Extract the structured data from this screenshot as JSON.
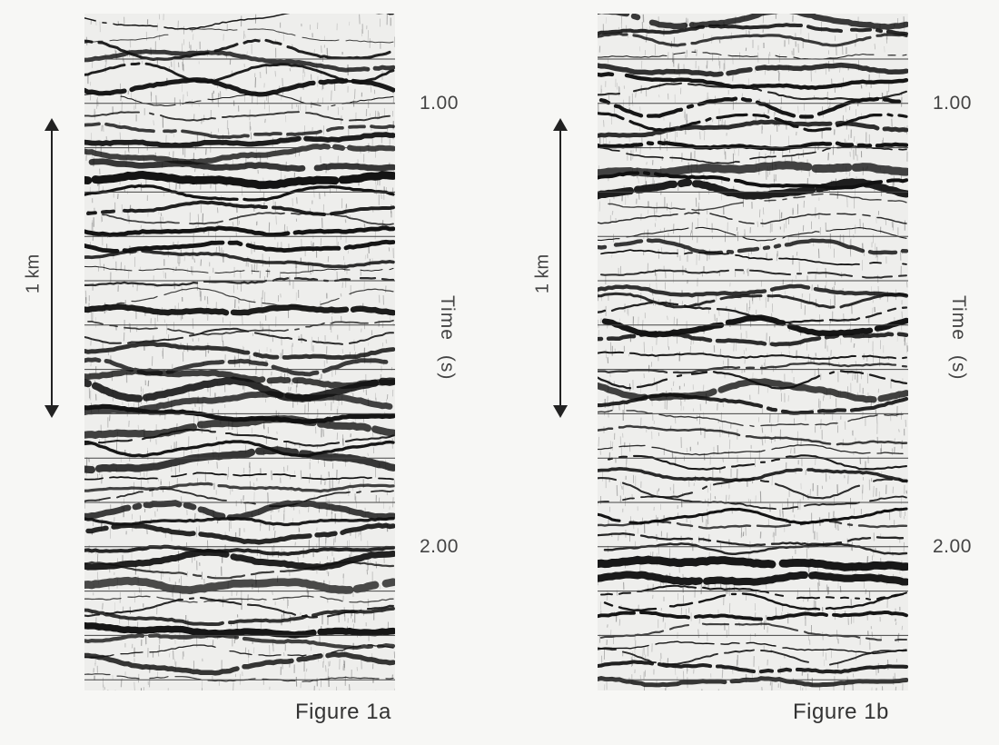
{
  "figures": [
    {
      "id": "a",
      "caption": "Figure 1a",
      "scale_bar": "1 km",
      "axis_title": "Time",
      "axis_unit": "(s)",
      "ticks": [
        "1.00",
        "2.00"
      ]
    },
    {
      "id": "b",
      "caption": "Figure 1b",
      "scale_bar": "1 km",
      "axis_title": "Time",
      "axis_unit": "(s)",
      "ticks": [
        "1.00",
        "2.00"
      ]
    }
  ],
  "colors": {
    "background": "#f7f7f5",
    "reflector": "#111111",
    "timing_line": "#444444"
  }
}
